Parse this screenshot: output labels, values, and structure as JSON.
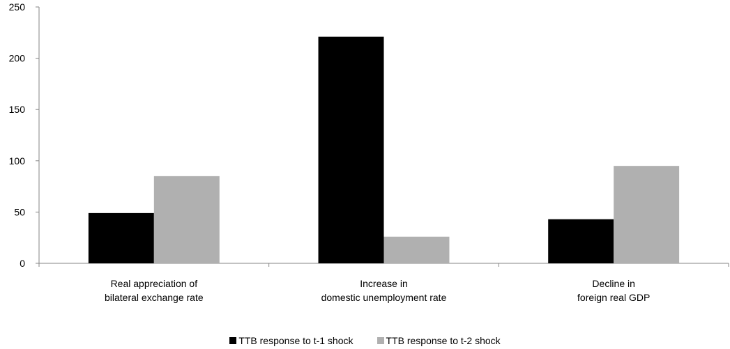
{
  "chart_data": {
    "type": "bar",
    "categories": [
      [
        "Real appreciation of",
        "bilateral exchange rate"
      ],
      [
        "Increase in",
        "domestic unemployment rate"
      ],
      [
        "Decline in",
        "foreign real GDP"
      ]
    ],
    "series": [
      {
        "name": "TTB response to t-1 shock",
        "color": "#000000",
        "values": [
          49,
          221,
          43
        ]
      },
      {
        "name": "TTB response to t-2 shock",
        "color": "#b0b0b0",
        "values": [
          85,
          26,
          95
        ]
      }
    ],
    "ylim": [
      0,
      250
    ],
    "yticks": [
      "0",
      "50",
      "100",
      "150",
      "200",
      "250"
    ],
    "grid": false,
    "legend_position": "bottom"
  }
}
